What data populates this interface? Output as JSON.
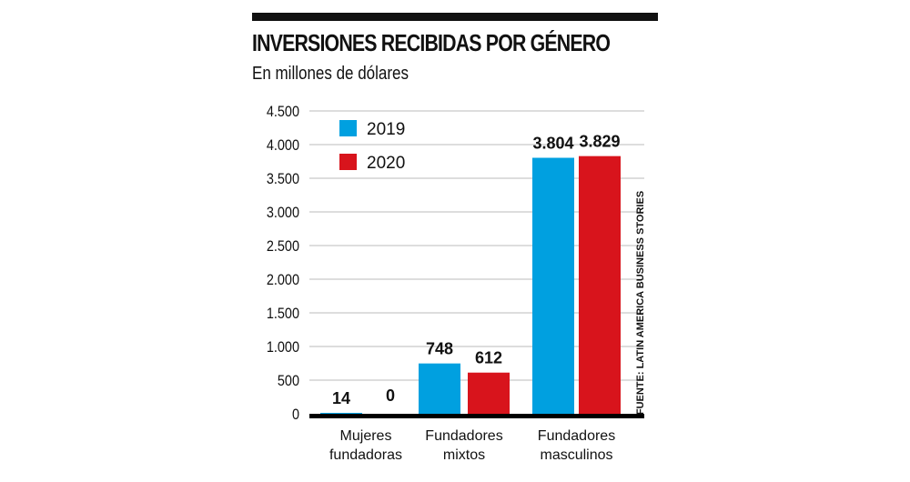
{
  "chart_data": {
    "type": "bar",
    "title": "INVERSIONES RECIBIDAS POR GÉNERO",
    "subtitle": "En millones de dólares",
    "source": "FUENTE: LATIN AMERICA BUSINESS STORIES",
    "categories": [
      [
        "Mujeres",
        "fundadoras"
      ],
      [
        "Fundadores",
        "mixtos"
      ],
      [
        "Fundadores",
        "masculinos"
      ]
    ],
    "series": [
      {
        "name": "2019",
        "color": "#00a0e0",
        "values": [
          14,
          748,
          3804
        ],
        "labels": [
          "14",
          "748",
          "3.804"
        ]
      },
      {
        "name": "2020",
        "color": "#d8141c",
        "values": [
          0,
          612,
          3829
        ],
        "labels": [
          "0",
          "612",
          "3.829"
        ]
      }
    ],
    "ylim": [
      0,
      4500
    ],
    "yticks": [
      0,
      500,
      1000,
      1500,
      2000,
      2500,
      3000,
      3500,
      4000,
      4500
    ],
    "ytick_labels": [
      "0",
      "500",
      "1.000",
      "1.500",
      "2.000",
      "2.500",
      "3.000",
      "3.500",
      "4.000",
      "4.500"
    ],
    "grid": true,
    "legend": "top-left"
  }
}
